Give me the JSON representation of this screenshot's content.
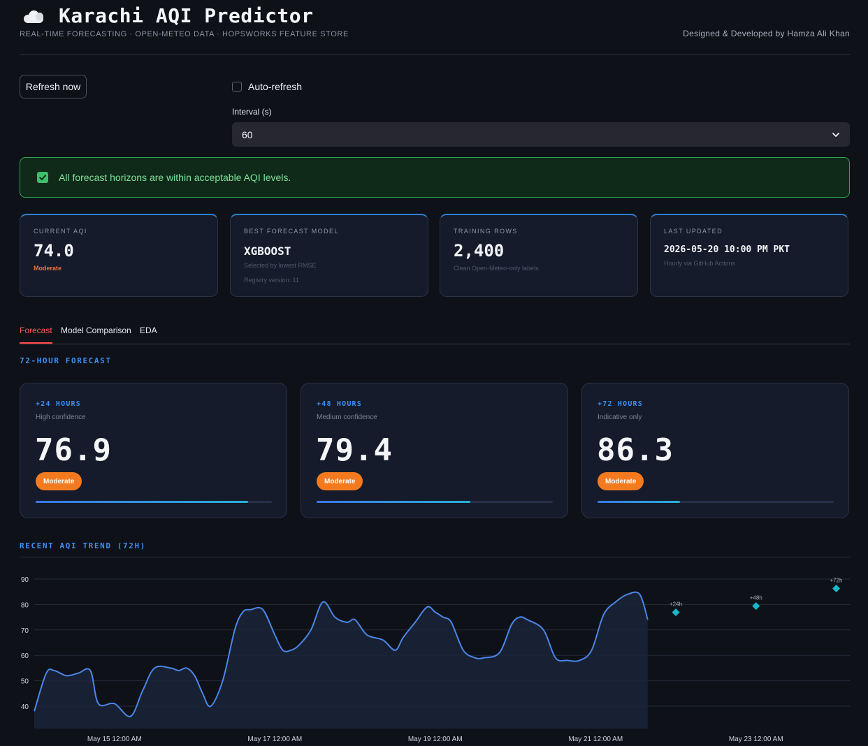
{
  "header": {
    "icon": "cloud-icon",
    "title": "Karachi AQI Predictor",
    "subtitle": "REAL-TIME FORECASTING · OPEN-METEO DATA · HOPSWORKS FEATURE STORE",
    "credit": "Designed & Developed by Hamza Ali Khan"
  },
  "controls": {
    "refresh_label": "Refresh now",
    "auto_refresh_label": "Auto-refresh",
    "auto_refresh_checked": false,
    "interval_label": "Interval (s)",
    "interval_value": "60"
  },
  "alert": {
    "text": "All forecast horizons are within acceptable AQI levels.",
    "color": "#2da54f"
  },
  "metrics": [
    {
      "label": "CURRENT AQI",
      "value": "74.0",
      "status": "Moderate"
    },
    {
      "label": "BEST FORECAST MODEL",
      "value": "XGBOOST",
      "sub1": "Selected by lowest RMSE",
      "sub2": "Registry version: 11"
    },
    {
      "label": "TRAINING ROWS",
      "value": "2,400",
      "sub1": "Clean Open-Meteo-only labels"
    },
    {
      "label": "LAST UPDATED",
      "value": "2026-05-20 10:00 PM PKT",
      "sub1": "Hourly via GitHub Actions"
    }
  ],
  "tabs": [
    {
      "label": "Forecast",
      "active": true
    },
    {
      "label": "Model Comparison",
      "active": false
    },
    {
      "label": "EDA",
      "active": false
    }
  ],
  "forecast_heading": "72-HOUR FORECAST",
  "forecast_cards": [
    {
      "horizon": "+24 HOURS",
      "confidence": "High confidence",
      "value": "76.9",
      "badge": "Moderate",
      "confidence_fill": 0.9
    },
    {
      "horizon": "+48 HOURS",
      "confidence": "Medium confidence",
      "value": "79.4",
      "badge": "Moderate",
      "confidence_fill": 0.65
    },
    {
      "horizon": "+72 HOURS",
      "confidence": "Indicative only",
      "value": "86.3",
      "badge": "Moderate",
      "confidence_fill": 0.35
    }
  ],
  "trend_heading": "RECENT AQI TREND (72H)",
  "colors": {
    "accent": "#3e8ff0",
    "badge_moderate": "#f47a1f",
    "line": "#4a86e8",
    "forecast_marker": "#19b7c8"
  },
  "chart_data": {
    "type": "line",
    "ylim": [
      35,
      92
    ],
    "yticks": [
      40,
      50,
      60,
      70,
      80,
      90
    ],
    "x_ticks": [
      "May 15 12:00 AM",
      "May 17 12:00 AM",
      "May 19 12:00 AM",
      "May 21 12:00 AM",
      "May 23 12:00 AM"
    ],
    "x_ticks_days": [
      1,
      3,
      5,
      7,
      9
    ],
    "series": [
      {
        "x_days": [
          0.0,
          0.15,
          0.25,
          0.4,
          0.55,
          0.7,
          0.8,
          1.0,
          1.2,
          1.35,
          1.5,
          1.7,
          1.8,
          1.9,
          2.0,
          2.1,
          2.2,
          2.35,
          2.5,
          2.6,
          2.7,
          2.85,
          3.0,
          3.1,
          3.2,
          3.3,
          3.45,
          3.6,
          3.75,
          3.9,
          4.0,
          4.15,
          4.35,
          4.5,
          4.6,
          4.75,
          4.9,
          5.0,
          5.1,
          5.2,
          5.35,
          5.5,
          5.6,
          5.8,
          5.95,
          6.05,
          6.15,
          6.35,
          6.5,
          6.65,
          6.8,
          6.95,
          7.1,
          7.25,
          7.4,
          7.55,
          7.65
        ],
        "values": [
          38,
          53,
          54,
          52,
          53,
          54,
          41,
          41,
          36,
          46,
          55,
          55,
          54,
          55,
          52,
          45,
          40,
          50,
          70,
          77,
          78,
          78,
          68,
          62,
          62,
          64,
          70,
          81,
          75,
          73,
          74,
          68,
          66,
          62,
          67,
          73,
          79,
          77,
          75,
          73,
          62,
          59,
          59,
          61,
          72,
          75,
          74,
          70,
          59,
          58,
          58,
          62,
          76,
          81,
          84,
          84,
          74
        ]
      }
    ],
    "forecast_points": [
      {
        "label": "+24h",
        "x_days": 8.0,
        "value": 76.9
      },
      {
        "label": "+48h",
        "x_days": 9.0,
        "value": 79.4
      },
      {
        "label": "+72h",
        "x_days": 10.0,
        "value": 86.3
      }
    ]
  }
}
